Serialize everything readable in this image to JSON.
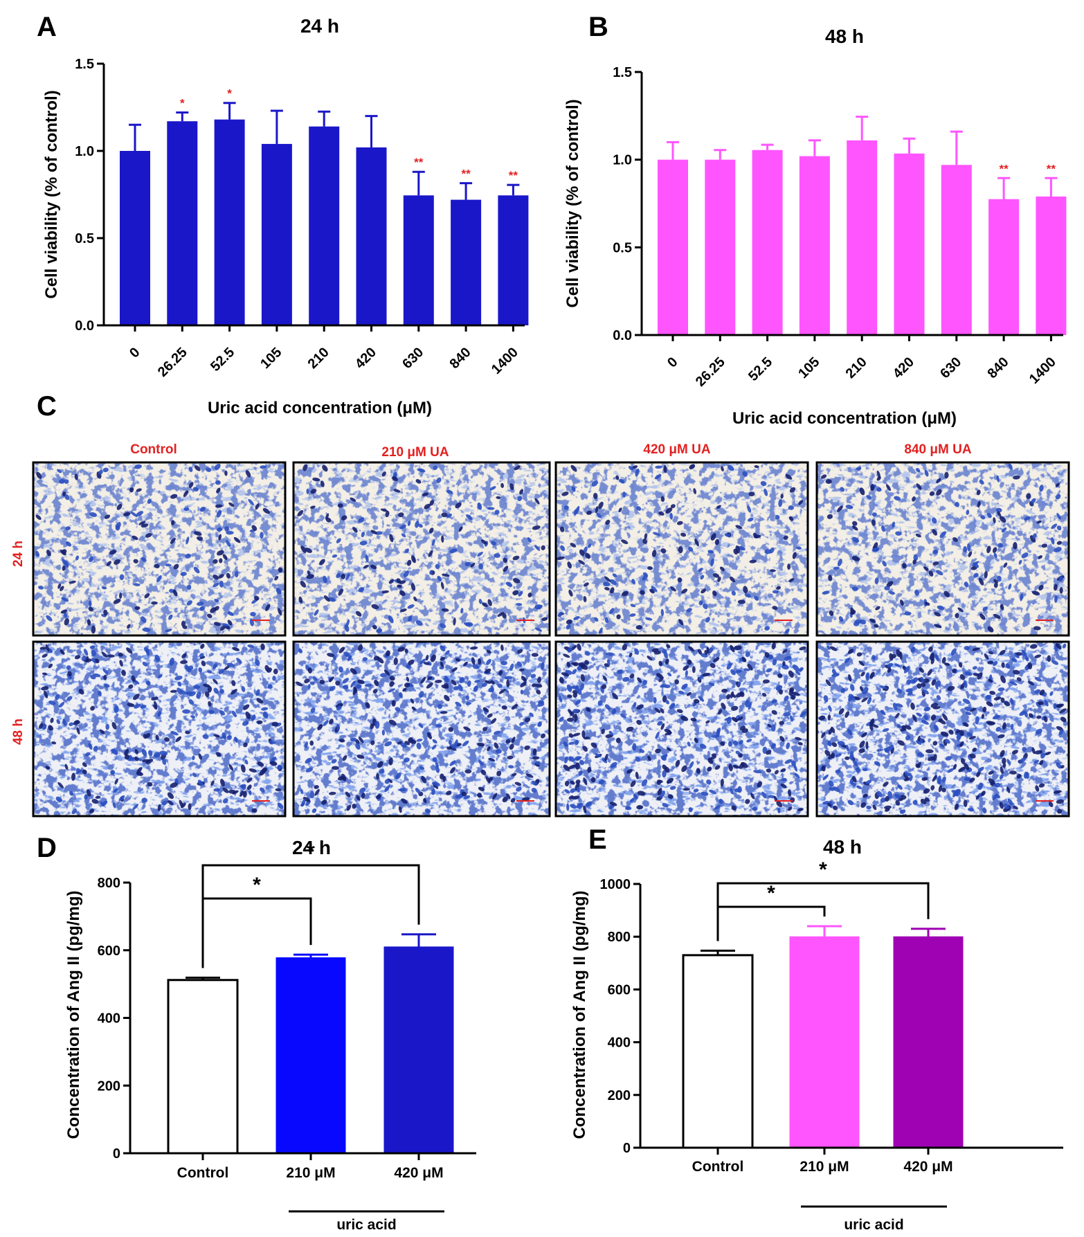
{
  "panel_letters": [
    "A",
    "B",
    "C",
    "D",
    "E"
  ],
  "colors": {
    "blue_dark": "#1a17c9",
    "blue_bright": "#0808ff",
    "magenta": "#ff55ff",
    "purple": "#9e02b3",
    "red": "#e32020",
    "stain_dark": "#16206e",
    "stain_mid": "#2b4fc0",
    "stain_bg": "#f3efe6"
  },
  "chart_data": [
    {
      "id": "A",
      "type": "bar",
      "title": "24 h",
      "xlabel": "Uric acid concentration (μM)",
      "ylabel": "Cell viability (% of control)",
      "ylim": [
        0,
        1.5
      ],
      "yticks": [
        "0.0",
        "0.5",
        "1.0",
        "1.5"
      ],
      "categories": [
        "0",
        "26.25",
        "52.5",
        "105",
        "210",
        "420",
        "630",
        "840",
        "1400"
      ],
      "values": [
        1.0,
        1.17,
        1.18,
        1.04,
        1.14,
        1.02,
        0.745,
        0.72,
        0.745
      ],
      "errors": [
        0.15,
        0.05,
        0.095,
        0.19,
        0.085,
        0.18,
        0.135,
        0.095,
        0.06
      ],
      "significance": [
        "",
        "*",
        "*",
        "",
        "",
        "",
        "**",
        "**",
        "**"
      ],
      "color": "#1a17c9"
    },
    {
      "id": "B",
      "type": "bar",
      "title": "48 h",
      "xlabel": "Uric acid concentration (μM)",
      "ylabel": "Cell viability (% of control)",
      "ylim": [
        0,
        1.5
      ],
      "yticks": [
        "0.0",
        "0.5",
        "1.0",
        "1.5"
      ],
      "categories": [
        "0",
        "26.25",
        "52.5",
        "105",
        "210",
        "420",
        "630",
        "840",
        "1400"
      ],
      "values": [
        1.0,
        1.0,
        1.055,
        1.02,
        1.11,
        1.035,
        0.97,
        0.775,
        0.79
      ],
      "errors": [
        0.1,
        0.055,
        0.03,
        0.09,
        0.135,
        0.085,
        0.19,
        0.12,
        0.105
      ],
      "significance": [
        "",
        "",
        "",
        "",
        "",
        "",
        "",
        "**",
        "**"
      ],
      "color": "#ff55ff"
    },
    {
      "id": "D",
      "type": "bar",
      "title": "24 h",
      "xlabel": "",
      "ylabel": "Concentration of Ang II (pg/mg)",
      "ylim": [
        0,
        800
      ],
      "yticks": [
        "0",
        "200",
        "400",
        "600",
        "800"
      ],
      "categories": [
        "Control",
        "210 μM",
        "420 μM"
      ],
      "values": [
        512,
        578,
        610
      ],
      "errors": [
        7,
        9,
        37
      ],
      "fill_colors": [
        "#ffffff",
        "#0808ff",
        "#1a17c9"
      ],
      "group_label": "uric acid",
      "brackets": [
        {
          "from": 0,
          "to": 1,
          "label": "*"
        },
        {
          "from": 0,
          "to": 2,
          "label": "*"
        }
      ]
    },
    {
      "id": "E",
      "type": "bar",
      "title": "48 h",
      "xlabel": "",
      "ylabel": "Concentration of Ang II (pg/mg)",
      "ylim": [
        0,
        1000
      ],
      "yticks": [
        "0",
        "200",
        "400",
        "600",
        "800",
        "1000"
      ],
      "categories": [
        "Control",
        "210 μM",
        "420 μM"
      ],
      "values": [
        730,
        800,
        800
      ],
      "errors": [
        17,
        40,
        30
      ],
      "fill_colors": [
        "#ffffff",
        "#ff55ff",
        "#9e02b3"
      ],
      "group_label": "uric acid",
      "brackets": [
        {
          "from": 0,
          "to": 1,
          "label": "*"
        },
        {
          "from": 0,
          "to": 2,
          "label": "*"
        }
      ]
    }
  ],
  "micrographs": {
    "column_labels": [
      "Control",
      "210 μM UA",
      "420 μM UA",
      "840 μM UA"
    ],
    "row_labels": [
      "24 h",
      "48 h"
    ]
  }
}
